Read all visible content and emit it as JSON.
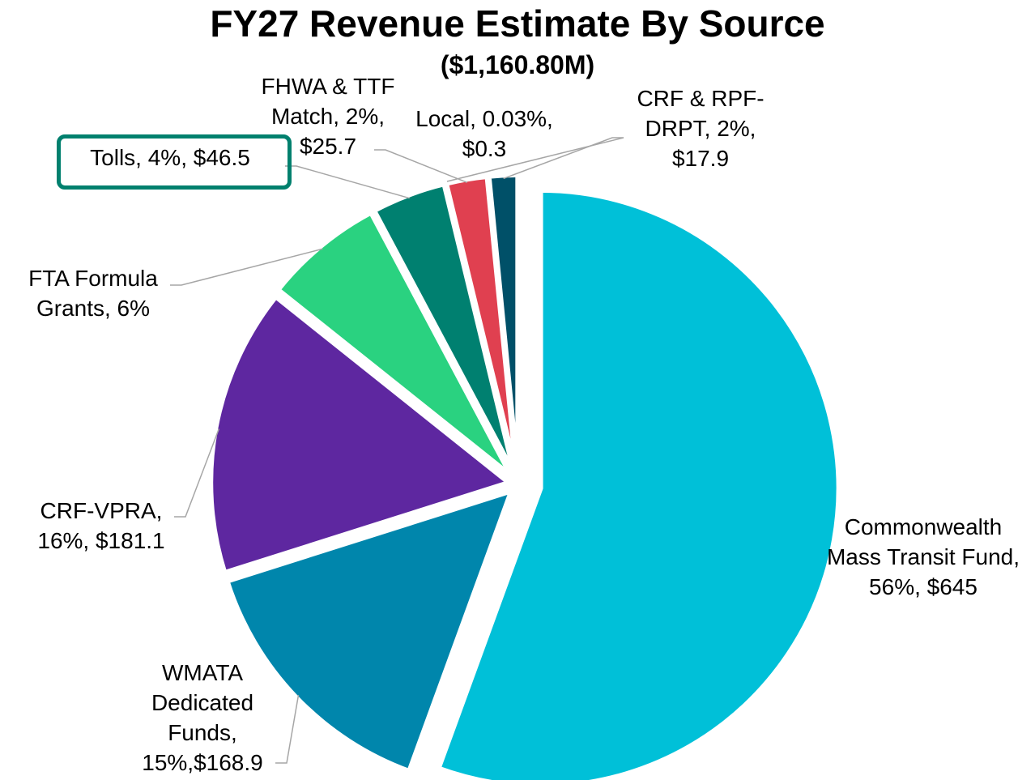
{
  "chart_data": {
    "type": "pie",
    "title": "FY27 Revenue Estimate By Source",
    "subtitle": "($1,160.80M)",
    "categories": [
      "Commonwealth Mass Transit Fund",
      "WMATA Dedicated Funds",
      "CRF-VPRA",
      "FTA Formula Grants",
      "Tolls",
      "FHWA & TTF Match",
      "Local",
      "CRF & RPF-DRPT"
    ],
    "values": [
      645,
      168.9,
      181.1,
      75.4,
      46.5,
      25.7,
      0.3,
      17.9
    ],
    "value_labels": [
      "Commonwealth Mass Transit Fund, 56%, $645",
      "WMATA Dedicated Funds, 15%,$168.9",
      "CRF-VPRA, 16%, $181.1",
      "FTA Formula Grants, 6%",
      "Tolls, 4%, $46.5",
      "FHWA & TTF Match, 2%, $25.7",
      "Local, 0.03%, $0.3",
      "CRF & RPF-DRPT, 2%, $17.9"
    ],
    "colors": [
      "#00c0d8",
      "#0086ac",
      "#5e27a0",
      "#2ad280",
      "#008070",
      "#e04050",
      "#007080",
      "#005068"
    ]
  }
}
